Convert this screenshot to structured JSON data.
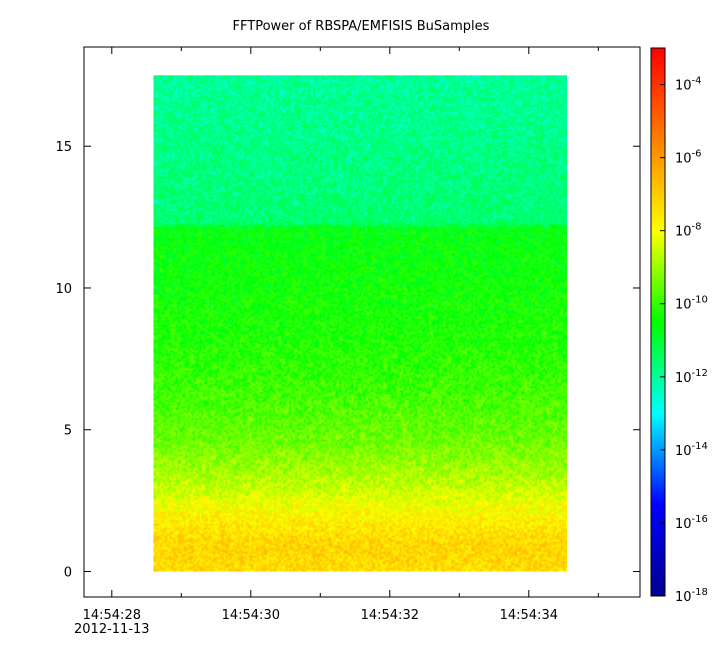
{
  "chart_data": {
    "type": "heatmap",
    "title": "FFTPower of RBSPA/EMFISIS  BuSamples",
    "xlabel": "",
    "ylabel": "",
    "x_ticks": [
      {
        "value": 28,
        "label": "14:54:28",
        "sublabel": "2012-11-13"
      },
      {
        "value": 30,
        "label": "14:54:30"
      },
      {
        "value": 32,
        "label": "14:54:32"
      },
      {
        "value": 34,
        "label": "14:54:34"
      }
    ],
    "x_minor_ticks": [
      29,
      31,
      33,
      35
    ],
    "xlim": [
      27.6,
      35.6
    ],
    "ylim": [
      -0.9,
      18.5
    ],
    "y_ticks": [
      0,
      5,
      10,
      15
    ],
    "data_extent": {
      "x": [
        28.6,
        34.55
      ],
      "y": [
        0,
        17.5
      ]
    },
    "colorbar": {
      "scale": "log",
      "range": [
        1e-18,
        0.001
      ],
      "tick_labels": [
        {
          "base": "10",
          "exp": "-4",
          "value": -4
        },
        {
          "base": "10",
          "exp": "-6",
          "value": -6
        },
        {
          "base": "10",
          "exp": "-8",
          "value": -8
        },
        {
          "base": "10",
          "exp": "-10",
          "value": -10
        },
        {
          "base": "10",
          "exp": "-12",
          "value": -12
        },
        {
          "base": "10",
          "exp": "-14",
          "value": -14
        },
        {
          "base": "10",
          "exp": "-16",
          "value": -16
        },
        {
          "base": "10",
          "exp": "-18",
          "value": -18
        }
      ],
      "colors": [
        "#00008f",
        "#0000ff",
        "#00ffff",
        "#00ff00",
        "#ffff00",
        "#ff7f00",
        "#ff0000"
      ]
    },
    "intensity_profile_log10": [
      {
        "y": 0.0,
        "value": -7.3
      },
      {
        "y": 1.0,
        "value": -7.2
      },
      {
        "y": 2.0,
        "value": -7.8
      },
      {
        "y": 3.0,
        "value": -8.6
      },
      {
        "y": 4.5,
        "value": -9.4
      },
      {
        "y": 6.0,
        "value": -9.8
      },
      {
        "y": 8.0,
        "value": -10.2
      },
      {
        "y": 10.0,
        "value": -10.4
      },
      {
        "y": 12.1,
        "value": -10.6
      },
      {
        "y": 12.3,
        "value": -11.6
      },
      {
        "y": 17.5,
        "value": -12.0
      }
    ]
  }
}
